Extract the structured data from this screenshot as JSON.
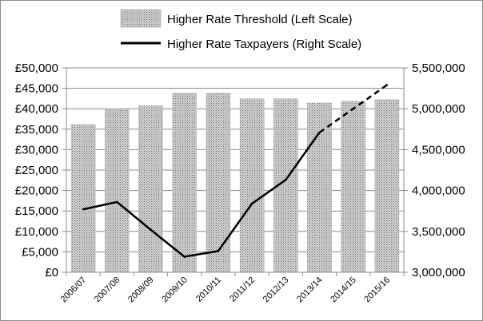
{
  "chart_data": {
    "type": "bar",
    "title": "",
    "categories": [
      "2006/07",
      "2007/08",
      "2008/09",
      "2009/10",
      "2010/11",
      "2011/12",
      "2012/13",
      "2013/14",
      "2014/15",
      "2015/16"
    ],
    "series": [
      {
        "name": "Higher Rate Threshold (Left Scale)",
        "type": "bar",
        "axis": "left",
        "values": [
          36200,
          39800,
          40800,
          43900,
          43900,
          42500,
          42500,
          41500,
          41900,
          42300
        ]
      },
      {
        "name": "Higher Rate Taxpayers (Right Scale)",
        "type": "line",
        "axis": "right",
        "values": [
          3770000,
          3860000,
          3520000,
          3190000,
          3260000,
          3840000,
          4130000,
          4710000,
          5000000,
          5290000
        ],
        "dashed_from_index": 7
      }
    ],
    "y_left": {
      "ylim": [
        0,
        50000
      ],
      "ticks": [
        0,
        5000,
        10000,
        15000,
        20000,
        25000,
        30000,
        35000,
        40000,
        45000,
        50000
      ],
      "tick_labels": [
        "£0",
        "£5,000",
        "£10,000",
        "£15,000",
        "£20,000",
        "£25,000",
        "£30,000",
        "£35,000",
        "£40,000",
        "£45,000",
        "£50,000"
      ]
    },
    "y_right": {
      "ylim": [
        3000000,
        5500000
      ],
      "ticks": [
        3000000,
        3500000,
        4000000,
        4500000,
        5000000,
        5500000
      ],
      "tick_labels": [
        "3,000,000",
        "3,500,000",
        "4,000,000",
        "4,500,000",
        "5,000,000",
        "5,500,000"
      ]
    },
    "grid": true,
    "legend_position": "top-center",
    "colors": {
      "bar_fill": "#c8c8c8",
      "bar_dots": "#6e6e6e",
      "line": "#000000",
      "grid": "#8c8c8c"
    }
  }
}
